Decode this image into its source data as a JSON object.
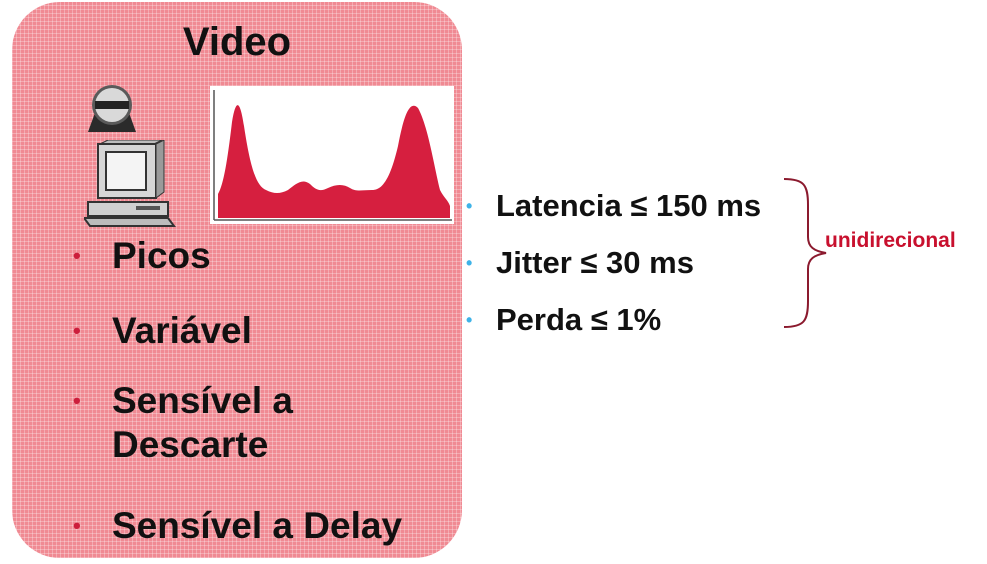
{
  "panel": {
    "title": "Video",
    "bullets": [
      "Picos",
      "Variável",
      "Sensível a Descarte",
      "Sensível a Delay"
    ]
  },
  "requirements": {
    "items": [
      "Latencia ≤ 150 ms",
      "Jitter ≤ 30 ms",
      "Perda ≤ 1%"
    ],
    "brace_label": "unidirecional"
  },
  "colors": {
    "panel_fill": "#f08a93",
    "chart_fill": "#d61f3f",
    "bullet_red": "#cc1e3c",
    "bullet_blue": "#3fb3e8",
    "brace": "#8b1a2e",
    "brace_label": "#c8102e"
  },
  "icons": {
    "camera": "video-camera-icon",
    "computer": "desktop-computer-icon"
  }
}
